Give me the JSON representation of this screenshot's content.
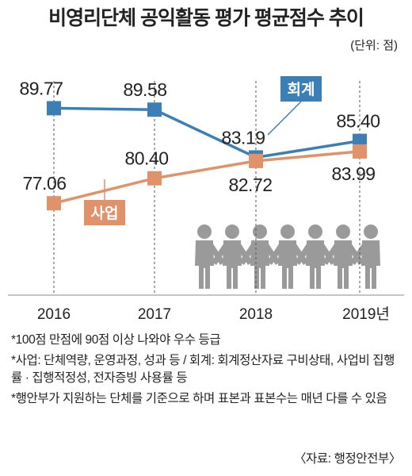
{
  "chart_data": {
    "type": "line",
    "title": "비영리단체 공익활동 평가 평균점수 추이",
    "unit": "(단위: 점)",
    "categories": [
      "2016",
      "2017",
      "2018",
      "2019년"
    ],
    "ylim": [
      60,
      100
    ],
    "grid": false,
    "series": [
      {
        "name": "회계",
        "values": [
          89.77,
          89.58,
          83.19,
          85.4
        ],
        "labels": [
          "89.77",
          "89.58",
          "83.19",
          "85.40"
        ],
        "color": "#3b7fb6"
      },
      {
        "name": "사업",
        "values": [
          77.06,
          80.4,
          82.72,
          83.99
        ],
        "labels": [
          "77.06",
          "80.40",
          "82.72",
          "83.99"
        ],
        "color": "#e0926a"
      }
    ]
  },
  "notes": [
    "*100점 만점에 90점 이상 나와야 우수 등급",
    "*사업: 단체역량, 운영과정, 성과 등 / 회계: 회계정산자료 구비상태, 사업비 집행률 · 집행적정성, 전자증빙 사용률 등",
    "*행안부가 지원하는 단체를 기준으로 하며 표본과 표본수는 매년 다를 수 있음"
  ],
  "source": "〈자료: 행정안전부〉",
  "colors": {
    "people": "#9a9a9a",
    "guide": "#555555"
  },
  "icons": [
    "people-chain-icon"
  ]
}
